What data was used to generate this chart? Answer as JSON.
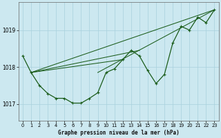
{
  "title": "Graphe pression niveau de la mer (hPa)",
  "bg_color": "#cce8f0",
  "grid_color": "#a8d0dc",
  "line_color": "#1a5c1a",
  "marker_color": "#1a5c1a",
  "xlim": [
    -0.5,
    23.5
  ],
  "ylim": [
    1016.55,
    1019.75
  ],
  "yticks": [
    1017,
    1018,
    1019
  ],
  "xticks": [
    0,
    1,
    2,
    3,
    4,
    5,
    6,
    7,
    8,
    9,
    10,
    11,
    12,
    13,
    14,
    15,
    16,
    17,
    18,
    19,
    20,
    21,
    22,
    23
  ],
  "series1": [
    1018.3,
    1017.85,
    1017.5,
    1017.28,
    1017.15,
    1017.15,
    1017.02,
    1017.02,
    1017.15,
    1017.3,
    1017.85,
    1017.95,
    1018.2,
    1018.45,
    1018.3,
    1017.9,
    1017.55,
    1017.8,
    1018.65,
    1019.1,
    1019.0,
    1019.35,
    1019.2,
    1019.55
  ],
  "trend_lines": [
    {
      "x": [
        1,
        23
      ],
      "y": [
        1017.85,
        1019.55
      ]
    },
    {
      "x": [
        1,
        12
      ],
      "y": [
        1017.85,
        1018.2
      ]
    },
    {
      "x": [
        9,
        23
      ],
      "y": [
        1017.85,
        1019.55
      ]
    },
    {
      "x": [
        1,
        14
      ],
      "y": [
        1017.85,
        1018.45
      ]
    }
  ]
}
